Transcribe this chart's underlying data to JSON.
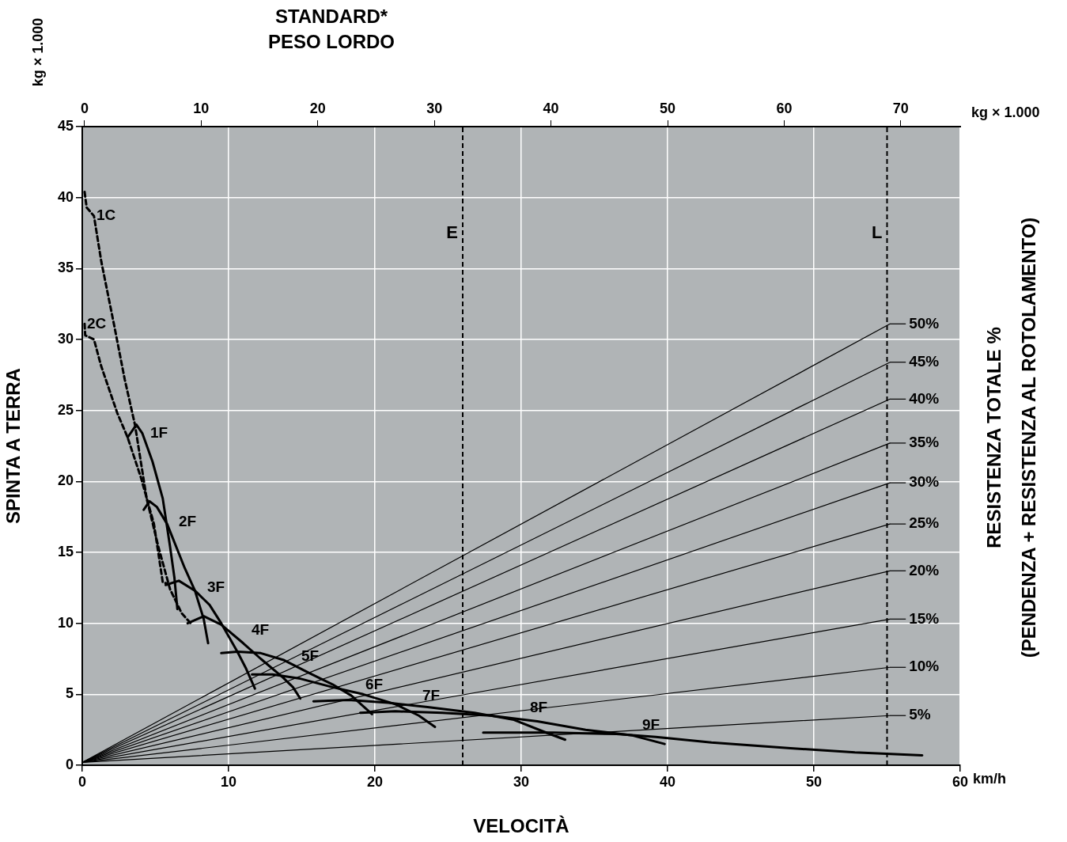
{
  "chart_data": {
    "type": "line",
    "x2label": "STANDARD*\nPESO LORDO",
    "xlabel": "VELOCITÀ",
    "ylabel": "SPINTA A TERRA",
    "y2label": "RESISTENZA TOTALE %\n(PENDENZA + RESISTENZA AL ROTOLAMENTO)",
    "xlim": [
      0,
      60
    ],
    "xticks": [
      0,
      10,
      20,
      30,
      40,
      50,
      60
    ],
    "x2lim": [
      -0.2,
      75.1
    ],
    "x2ticks": [
      0,
      10,
      20,
      30,
      40,
      50,
      60,
      70
    ],
    "ylim": [
      0,
      45
    ],
    "yticks": [
      0,
      5,
      10,
      15,
      20,
      25,
      30,
      35,
      40,
      45
    ],
    "grid": true,
    "legend": "right",
    "annotations": [
      "kg × 1.000",
      "kg × 1.000",
      "km/h"
    ],
    "ref_lines": [
      {
        "axis": "x",
        "value": 26,
        "label": "E",
        "color": "#000000",
        "line_style": "dashed"
      },
      {
        "axis": "x",
        "value": 55,
        "label": "L",
        "color": "#000000",
        "line_style": "dashed"
      }
    ],
    "series": [
      {
        "name": "1C",
        "color": "#000000",
        "line_style": "dashed",
        "x": [
          0.16,
          0.3,
          0.8,
          1.3,
          2.2,
          2.9,
          3.6,
          4.4,
          5.2,
          6.0,
          6.8,
          7.5
        ],
        "values": [
          40.4,
          39.3,
          38.7,
          35.5,
          30.9,
          27.2,
          24.0,
          18.8,
          15.4,
          12.4,
          10.7,
          9.9
        ]
      },
      {
        "name": "2C",
        "color": "#000000",
        "line_style": "dashed",
        "x": [
          0.16,
          0.2,
          0.8,
          1.3,
          2.4,
          3.1,
          4.0,
          4.9,
          5.5,
          5.8
        ],
        "values": [
          31.1,
          30.3,
          30.0,
          28.1,
          24.8,
          23.1,
          20.3,
          17.0,
          12.9,
          12.8
        ]
      },
      {
        "name": "1F",
        "color": "#000000",
        "line_style": "solid",
        "x": [
          3.1,
          3.7,
          4.1,
          4.8,
          5.5,
          6.0,
          6.3,
          6.5
        ],
        "values": [
          23.1,
          24.0,
          23.4,
          21.4,
          18.8,
          15.4,
          13.2,
          11.0
        ]
      },
      {
        "name": "2F",
        "color": "#000000",
        "line_style": "solid",
        "x": [
          4.2,
          4.6,
          5.1,
          5.8,
          7.0,
          7.7,
          8.3,
          8.6
        ],
        "values": [
          18.0,
          18.6,
          18.2,
          17.0,
          13.9,
          12.3,
          10.3,
          8.6
        ]
      },
      {
        "name": "3F",
        "color": "#000000",
        "line_style": "solid",
        "x": [
          5.7,
          6.6,
          7.7,
          8.7,
          9.5,
          10.6,
          11.2,
          11.8
        ],
        "values": [
          12.7,
          13.0,
          12.3,
          11.3,
          10.0,
          8.0,
          6.8,
          5.4
        ]
      },
      {
        "name": "4F",
        "color": "#000000",
        "line_style": "solid",
        "x": [
          7.2,
          8.3,
          9.5,
          11.0,
          12.2,
          13.7,
          14.4,
          14.9
        ],
        "values": [
          10.0,
          10.5,
          9.9,
          8.6,
          7.5,
          6.2,
          5.5,
          4.7
        ]
      },
      {
        "name": "5F",
        "color": "#000000",
        "line_style": "solid",
        "x": [
          9.5,
          10.6,
          12.2,
          13.8,
          15.5,
          17.1,
          18.4,
          19.8
        ],
        "values": [
          7.9,
          8.0,
          7.9,
          7.4,
          6.5,
          5.7,
          4.9,
          3.6
        ]
      },
      {
        "name": "6F",
        "color": "#000000",
        "line_style": "solid",
        "x": [
          11.6,
          13.0,
          14.9,
          17.1,
          19.2,
          21.4,
          23.0,
          24.1
        ],
        "values": [
          6.4,
          6.4,
          6.1,
          5.5,
          5.0,
          4.3,
          3.5,
          2.7
        ]
      },
      {
        "name": "7F",
        "color": "#000000",
        "line_style": "solid",
        "x": [
          15.8,
          18.2,
          20.9,
          23.6,
          26.8,
          29.5,
          31.7,
          33.0
        ],
        "values": [
          4.5,
          4.6,
          4.4,
          4.1,
          3.7,
          3.2,
          2.3,
          1.8
        ]
      },
      {
        "name": "8F",
        "color": "#000000",
        "line_style": "solid",
        "x": [
          19.0,
          21.4,
          24.6,
          27.9,
          31.1,
          34.4,
          37.6,
          39.8
        ],
        "values": [
          3.7,
          3.8,
          3.7,
          3.5,
          3.1,
          2.5,
          2.1,
          1.5
        ]
      },
      {
        "name": "9F",
        "color": "#000000",
        "line_style": "solid",
        "x": [
          27.4,
          32.2,
          36.5,
          39.2,
          43.0,
          48.4,
          52.8,
          57.4
        ],
        "values": [
          2.3,
          2.3,
          2.2,
          2.0,
          1.6,
          1.2,
          0.9,
          0.7
        ]
      },
      {
        "name": "50%",
        "color": "#000000",
        "line_style": "solid",
        "x": [
          0,
          55.2
        ],
        "values": [
          0.2,
          31.1
        ]
      },
      {
        "name": "45%",
        "color": "#000000",
        "line_style": "solid",
        "x": [
          0,
          55.2
        ],
        "values": [
          0.2,
          28.4
        ]
      },
      {
        "name": "40%",
        "color": "#000000",
        "line_style": "solid",
        "x": [
          0,
          55.2
        ],
        "values": [
          0.2,
          25.8
        ]
      },
      {
        "name": "35%",
        "color": "#000000",
        "line_style": "solid",
        "x": [
          0,
          55.2
        ],
        "values": [
          0.2,
          22.7
        ]
      },
      {
        "name": "30%",
        "color": "#000000",
        "line_style": "solid",
        "x": [
          0,
          55.2
        ],
        "values": [
          0.2,
          19.9
        ]
      },
      {
        "name": "25%",
        "color": "#000000",
        "line_style": "solid",
        "x": [
          0,
          55.2
        ],
        "values": [
          0.2,
          17.0
        ]
      },
      {
        "name": "20%",
        "color": "#000000",
        "line_style": "solid",
        "x": [
          0,
          55.2
        ],
        "values": [
          0.2,
          13.7
        ]
      },
      {
        "name": "15%",
        "color": "#000000",
        "line_style": "solid",
        "x": [
          0,
          55.2
        ],
        "values": [
          0.2,
          10.3
        ]
      },
      {
        "name": "10%",
        "color": "#000000",
        "line_style": "solid",
        "x": [
          0,
          55.2
        ],
        "values": [
          0.2,
          6.9
        ]
      },
      {
        "name": "5%",
        "color": "#000000",
        "line_style": "solid",
        "x": [
          0,
          55.2
        ],
        "values": [
          0.2,
          3.5
        ]
      }
    ]
  }
}
